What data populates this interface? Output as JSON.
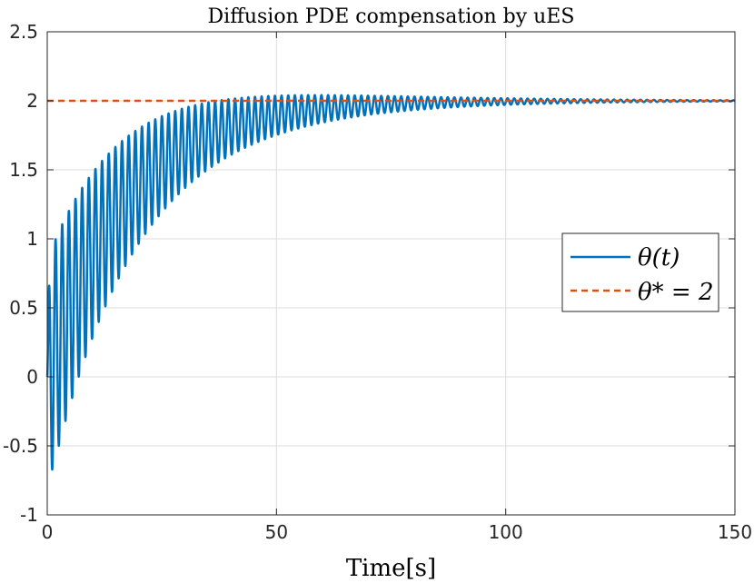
{
  "chart_data": {
    "type": "line",
    "title": "Diffusion PDE compensation by uES",
    "xlabel": "Time[s]",
    "ylabel": "",
    "xlim": [
      0,
      150
    ],
    "ylim": [
      -1,
      2.5
    ],
    "grid": true,
    "x_ticks": [
      0,
      50,
      100,
      150
    ],
    "y_ticks": [
      -1,
      -0.5,
      0,
      0.5,
      1,
      1.5,
      2,
      2.5
    ],
    "x_tick_labels": [
      "0",
      "50",
      "100",
      "150"
    ],
    "y_tick_labels": [
      "-1",
      "-0.5",
      "0",
      "0.5",
      "1",
      "1.5",
      "2",
      "2.5"
    ],
    "legend_position": "right",
    "series": [
      {
        "name": "θ(t)",
        "style": "solid",
        "color": "#0072BD",
        "envelope_model": {
          "description": "oscillation around exponential approach to 2",
          "final_value": 2,
          "time_constant": 17,
          "initial_amplitude": 0.85,
          "amplitude_decay_time": 28,
          "oscillation_period": 1.45
        }
      },
      {
        "name": "θ* = 2",
        "style": "dashed",
        "color": "#D95319",
        "x": [
          0,
          150
        ],
        "y": [
          2,
          2
        ]
      }
    ],
    "legend": {
      "entries": [
        "θ(t)",
        "θ* = 2"
      ]
    }
  }
}
